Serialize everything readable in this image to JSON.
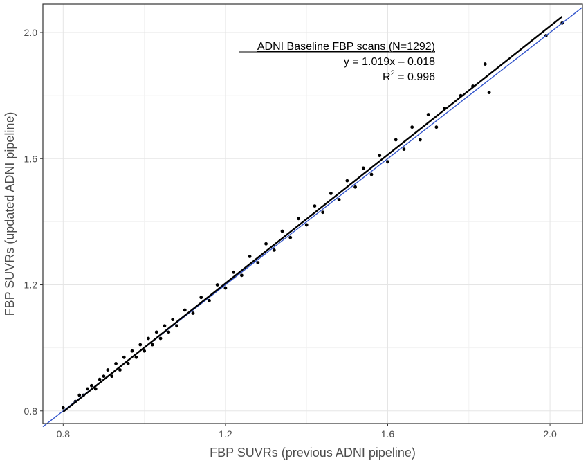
{
  "chart_data": {
    "type": "scatter",
    "title": "",
    "xlabel": "FBP SUVRs (previous ADNI pipeline)",
    "ylabel": "FBP SUVRs (updated ADNI pipeline)",
    "xlim": [
      0.75,
      2.08
    ],
    "ylim": [
      0.76,
      2.09
    ],
    "x_ticks": [
      0.8,
      1.2,
      1.6,
      2.0
    ],
    "y_ticks": [
      0.8,
      1.2,
      1.6,
      2.0
    ],
    "x_tick_labels": [
      "0.8",
      "1.2",
      "1.6",
      "2.0"
    ],
    "y_tick_labels": [
      "0.8",
      "1.2",
      "1.6",
      "2.0"
    ],
    "grid": true,
    "annotation": {
      "title": "ADNI Baseline FBP scans (N=1292)",
      "equation": "y = 1.019x – 0.018",
      "r_squared_label": "R",
      "r_squared_sup": "2",
      "r_squared_value": " = 0.996"
    },
    "regression_line": {
      "slope": 1.019,
      "intercept": -0.018,
      "x_range": [
        0.8,
        2.03
      ],
      "color": "#000000"
    },
    "identity_line": {
      "slope": 1,
      "intercept": 0,
      "color": "#3355cc"
    },
    "n_points": 1292,
    "point_color": "#000000",
    "points": [
      [
        0.8,
        0.81
      ],
      [
        0.83,
        0.83
      ],
      [
        0.84,
        0.85
      ],
      [
        0.85,
        0.85
      ],
      [
        0.86,
        0.87
      ],
      [
        0.87,
        0.88
      ],
      [
        0.88,
        0.87
      ],
      [
        0.89,
        0.9
      ],
      [
        0.9,
        0.91
      ],
      [
        0.91,
        0.93
      ],
      [
        0.92,
        0.91
      ],
      [
        0.93,
        0.95
      ],
      [
        0.94,
        0.93
      ],
      [
        0.95,
        0.97
      ],
      [
        0.96,
        0.95
      ],
      [
        0.97,
        0.99
      ],
      [
        0.98,
        0.97
      ],
      [
        0.99,
        1.01
      ],
      [
        1.0,
        0.99
      ],
      [
        1.01,
        1.03
      ],
      [
        1.02,
        1.01
      ],
      [
        1.03,
        1.05
      ],
      [
        1.04,
        1.03
      ],
      [
        1.05,
        1.07
      ],
      [
        1.06,
        1.05
      ],
      [
        1.07,
        1.09
      ],
      [
        1.08,
        1.07
      ],
      [
        1.1,
        1.12
      ],
      [
        1.12,
        1.11
      ],
      [
        1.14,
        1.16
      ],
      [
        1.16,
        1.15
      ],
      [
        1.18,
        1.2
      ],
      [
        1.2,
        1.19
      ],
      [
        1.22,
        1.24
      ],
      [
        1.24,
        1.23
      ],
      [
        1.26,
        1.29
      ],
      [
        1.28,
        1.27
      ],
      [
        1.3,
        1.33
      ],
      [
        1.32,
        1.31
      ],
      [
        1.34,
        1.37
      ],
      [
        1.36,
        1.35
      ],
      [
        1.38,
        1.41
      ],
      [
        1.4,
        1.39
      ],
      [
        1.42,
        1.45
      ],
      [
        1.44,
        1.43
      ],
      [
        1.46,
        1.49
      ],
      [
        1.48,
        1.47
      ],
      [
        1.5,
        1.53
      ],
      [
        1.52,
        1.51
      ],
      [
        1.54,
        1.57
      ],
      [
        1.56,
        1.55
      ],
      [
        1.58,
        1.61
      ],
      [
        1.6,
        1.59
      ],
      [
        1.62,
        1.66
      ],
      [
        1.64,
        1.63
      ],
      [
        1.66,
        1.7
      ],
      [
        1.68,
        1.66
      ],
      [
        1.7,
        1.74
      ],
      [
        1.72,
        1.7
      ],
      [
        1.74,
        1.76
      ],
      [
        1.78,
        1.8
      ],
      [
        1.81,
        1.83
      ],
      [
        1.84,
        1.9
      ],
      [
        1.85,
        1.81
      ],
      [
        1.99,
        1.99
      ],
      [
        2.03,
        2.03
      ]
    ]
  }
}
